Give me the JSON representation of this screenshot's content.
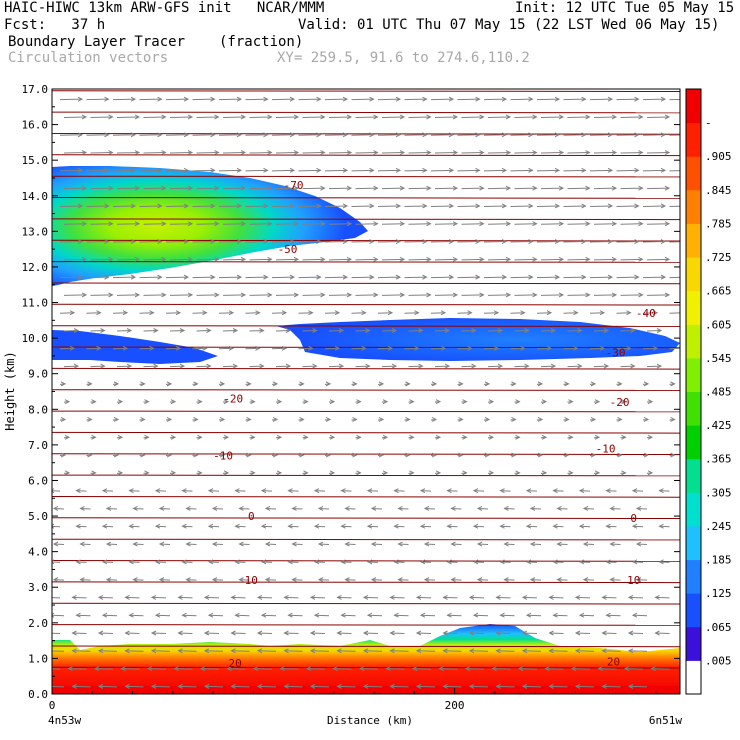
{
  "header": {
    "title": "HAIC-HIWC 13km ARW-GFS init   NCAR/MMM",
    "init": "Init: 12 UTC Tue 05 May 15",
    "fcst": "Fcst:   37 h",
    "valid": "Valid: 01 UTC Thu 07 May 15 (22 LST Wed 06 May 15)",
    "field1": "Boundary Layer Tracer",
    "field1_units": "(fraction)",
    "field2": "Circulation vectors",
    "xy": "XY= 259.5, 91.6 to 274.6,110.2"
  },
  "colors": {
    "contour": "#8b0000",
    "vector": "#808080",
    "colorbar": [
      "#ffffff",
      "#3b10d8",
      "#1850ff",
      "#2080ff",
      "#20c0ff",
      "#00e0d0",
      "#00e090",
      "#00d000",
      "#40e000",
      "#80f000",
      "#c0f000",
      "#f0f000",
      "#f8d800",
      "#ffb000",
      "#ff8000",
      "#ff5000",
      "#ff2000",
      "#f00000"
    ]
  },
  "chart_data": {
    "type": "heatmap",
    "title": "Boundary Layer Tracer",
    "units": "(fraction)",
    "xlabel": "Distance (km)",
    "ylabel": "Height (km)",
    "xlim": [
      0,
      312
    ],
    "ylim": [
      0,
      17
    ],
    "x_ticks": [
      "0",
      "200"
    ],
    "x_ends": [
      "4n53w",
      "6n51w"
    ],
    "y_ticks": [
      "0.0",
      "1.0",
      "2.0",
      "3.0",
      "4.0",
      "5.0",
      "6.0",
      "7.0",
      "8.0",
      "9.0",
      "10.0",
      "11.0",
      "12.0",
      "13.0",
      "14.0",
      "15.0",
      "16.0",
      "17.0"
    ],
    "colorbar_labels": [
      ".005",
      ".065",
      ".125",
      ".185",
      ".245",
      ".305",
      ".365",
      ".425",
      ".485",
      ".545",
      ".605",
      ".665",
      ".725",
      ".785",
      ".845",
      ".905",
      "-"
    ],
    "contour_labels": [
      {
        "value": "-70",
        "x": 120,
        "y": 14.3
      },
      {
        "value": "-50",
        "x": 117,
        "y": 12.5
      },
      {
        "value": "-40",
        "x": 295,
        "y": 10.7
      },
      {
        "value": "-30",
        "x": 280,
        "y": 9.6
      },
      {
        "value": "-20",
        "x": 90,
        "y": 8.3
      },
      {
        "value": "-20",
        "x": 282,
        "y": 8.2
      },
      {
        "value": "-10",
        "x": 85,
        "y": 6.7
      },
      {
        "value": "-10",
        "x": 275,
        "y": 6.9
      },
      {
        "value": "0",
        "x": 99,
        "y": 5.0
      },
      {
        "value": "0",
        "x": 289,
        "y": 4.95
      },
      {
        "value": "10",
        "x": 99,
        "y": 3.2
      },
      {
        "value": "10",
        "x": 289,
        "y": 3.2
      },
      {
        "value": "20",
        "x": 91,
        "y": 0.87
      },
      {
        "value": "20",
        "x": 279,
        "y": 0.92
      }
    ],
    "tracer_regions": [
      {
        "desc": "upper plume",
        "x": [
          0,
          160
        ],
        "y": [
          11.5,
          14.8
        ],
        "max": 0.55
      },
      {
        "desc": "mid left layer",
        "x": [
          0,
          82
        ],
        "y": [
          9.0,
          10.2
        ],
        "max": 0.1
      },
      {
        "desc": "mid right layer",
        "x": [
          112,
          312
        ],
        "y": [
          9.3,
          10.5
        ],
        "max": 0.2
      },
      {
        "desc": "boundary layer",
        "x": [
          0,
          312
        ],
        "y": [
          0,
          1.9
        ],
        "max": 1.0
      }
    ]
  }
}
